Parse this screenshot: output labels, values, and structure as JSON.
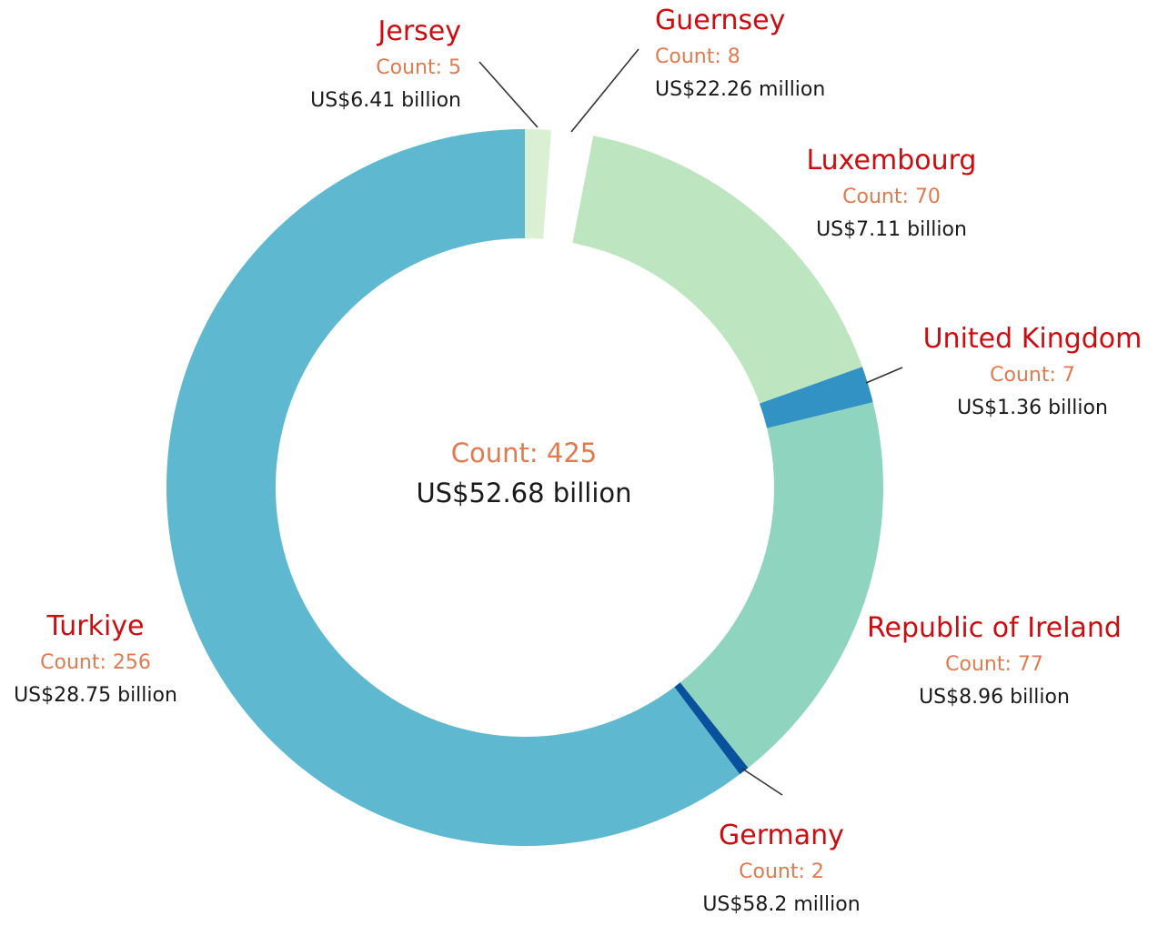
{
  "chart_data": {
    "type": "pie",
    "center": {
      "count_label": "Count: 425",
      "amount_label": "US$52.68 billion"
    },
    "slices": [
      {
        "name": "Jersey",
        "count": 5,
        "count_label": "Count: 5",
        "amount_label": "US$6.41 billion",
        "color": "#d9f0d3"
      },
      {
        "name": "Guernsey",
        "count": 8,
        "count_label": "Count: 8",
        "amount_label": "US$22.26 million",
        "color": "#ffffff"
      },
      {
        "name": "Luxembourg",
        "count": 70,
        "count_label": "Count: 70",
        "amount_label": "US$7.11 billion",
        "color": "#bde6c0"
      },
      {
        "name": "United Kingdom",
        "count": 7,
        "count_label": "Count: 7",
        "amount_label": "US$1.36 billion",
        "color": "#3192c3"
      },
      {
        "name": "Republic of Ireland",
        "count": 77,
        "count_label": "Count: 77",
        "amount_label": "US$8.96 billion",
        "color": "#8fd4be"
      },
      {
        "name": "Germany",
        "count": 2,
        "count_label": "Count: 2",
        "amount_label": "US$58.2 million",
        "color": "#08519c"
      },
      {
        "name": "Turkiye",
        "count": 256,
        "count_label": "Count: 256",
        "amount_label": "US$28.75 billion",
        "color": "#5db8d0"
      }
    ]
  }
}
